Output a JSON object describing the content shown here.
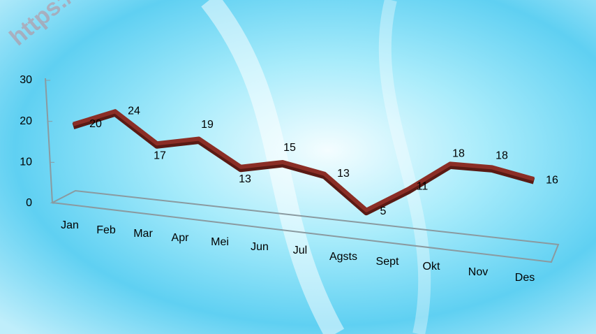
{
  "watermark": "https://ta",
  "chart_data": {
    "type": "line",
    "categories": [
      "Jan",
      "Feb",
      "Mar",
      "Apr",
      "Mei",
      "Jun",
      "Jul",
      "Agsts",
      "Sept",
      "Okt",
      "Nov",
      "Des"
    ],
    "values": [
      20,
      24,
      17,
      19,
      13,
      15,
      13,
      5,
      11,
      18,
      18,
      16
    ],
    "color": "#8b2e26",
    "ylim": [
      0,
      30
    ],
    "yticks": [
      0,
      10,
      20,
      30
    ],
    "grid": false
  }
}
